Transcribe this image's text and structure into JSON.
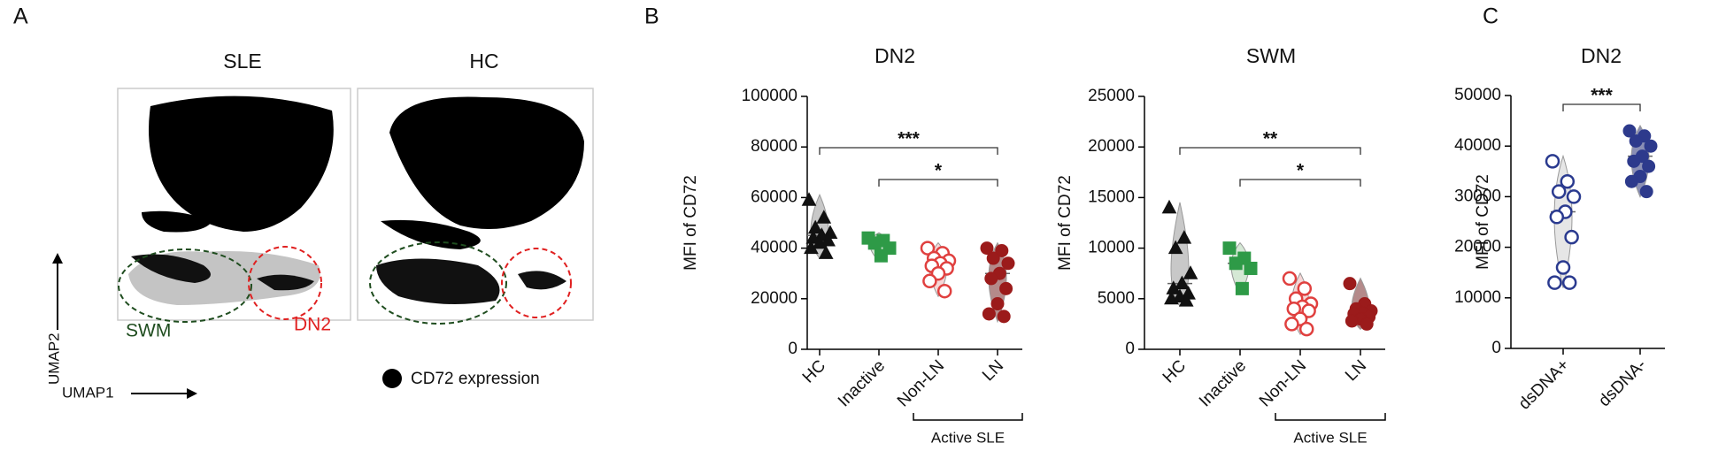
{
  "panels": [
    "A",
    "B",
    "C"
  ],
  "panel_a": {
    "titles": [
      "SLE",
      "HC"
    ],
    "regions": [
      "SWM",
      "DN2"
    ],
    "x_axis_label": "UMAP1",
    "y_axis_label": "UMAP2",
    "legend": "CD72 expression"
  },
  "chart_data": [
    {
      "type": "dotplot",
      "title": "DN2",
      "y_label": "MFI of CD72",
      "categories": [
        "HC",
        "Inactive",
        "Non-LN",
        "LN"
      ],
      "values": [
        [
          59000,
          52000,
          48000,
          46000,
          45000,
          44000,
          43000,
          42000,
          40000,
          38000
        ],
        [
          44000,
          43000,
          42000,
          40000,
          37000
        ],
        [
          40000,
          38000,
          36000,
          35000,
          34000,
          33000,
          32000,
          30000,
          27000,
          23000
        ],
        [
          40000,
          39000,
          36000,
          34000,
          30000,
          28000,
          24000,
          18000,
          14000,
          13000
        ]
      ],
      "colors": [
        "#111111",
        "#2e9a47",
        "#e0403f",
        "#9b1b1b"
      ],
      "violin_colors": [
        "#c8c8c8",
        "#d5e8d5",
        "#f6d6d6",
        "#b48a8a"
      ],
      "markers": [
        "triangle",
        "square",
        "circle",
        "circle"
      ],
      "filled": [
        true,
        true,
        false,
        true
      ],
      "ylim": [
        0,
        100000
      ],
      "yticks": [
        0,
        20000,
        40000,
        60000,
        80000,
        100000
      ],
      "brackets": [
        {
          "label": "***",
          "between": [
            "HC",
            "LN"
          ]
        },
        {
          "label": "*",
          "between": [
            "Inactive",
            "LN"
          ]
        }
      ],
      "group_brackets": [
        {
          "label": "Active SLE",
          "between": [
            "Non-LN",
            "LN"
          ]
        }
      ]
    },
    {
      "type": "dotplot",
      "title": "SWM",
      "y_label": "MFI of CD72",
      "categories": [
        "HC",
        "Inactive",
        "Non-LN",
        "LN"
      ],
      "values": [
        [
          14000,
          11000,
          10000,
          7500,
          6500,
          6000,
          5500,
          5200,
          5000,
          4800
        ],
        [
          10000,
          9000,
          8500,
          8000,
          6000
        ],
        [
          7000,
          6000,
          5000,
          4500,
          4200,
          4000,
          3800,
          3000,
          2500,
          2000
        ],
        [
          6500,
          4500,
          4000,
          3800,
          3600,
          3500,
          3200,
          3000,
          2800,
          2500
        ]
      ],
      "colors": [
        "#111111",
        "#2e9a47",
        "#e0403f",
        "#9b1b1b"
      ],
      "violin_colors": [
        "#c8c8c8",
        "#d5e8d5",
        "#f6d6d6",
        "#b48a8a"
      ],
      "markers": [
        "triangle",
        "square",
        "circle",
        "circle"
      ],
      "filled": [
        true,
        true,
        false,
        true
      ],
      "ylim": [
        0,
        25000
      ],
      "yticks": [
        0,
        5000,
        10000,
        15000,
        20000,
        25000
      ],
      "brackets": [
        {
          "label": "**",
          "between": [
            "HC",
            "LN"
          ]
        },
        {
          "label": "*",
          "between": [
            "Inactive",
            "LN"
          ]
        }
      ],
      "group_brackets": [
        {
          "label": "Active SLE",
          "between": [
            "Non-LN",
            "LN"
          ]
        }
      ]
    },
    {
      "type": "dotplot",
      "title": "DN2",
      "y_label": "MFI of CD72",
      "categories": [
        "dsDNA+",
        "dsDNA-"
      ],
      "values": [
        [
          37000,
          33000,
          31000,
          30000,
          27000,
          26000,
          22000,
          16000,
          13000,
          13000
        ],
        [
          43000,
          42000,
          41000,
          40000,
          38000,
          37000,
          36000,
          34000,
          33000,
          31000
        ]
      ],
      "colors": [
        "#2a3a8f",
        "#2d3a8c"
      ],
      "violin_colors": [
        "#e6e6e6",
        "#8a8fb5"
      ],
      "markers": [
        "circle",
        "circle"
      ],
      "filled": [
        false,
        true
      ],
      "ylim": [
        0,
        50000
      ],
      "yticks": [
        0,
        10000,
        20000,
        30000,
        40000,
        50000
      ],
      "brackets": [
        {
          "label": "***",
          "between": [
            "dsDNA+",
            "dsDNA-"
          ]
        }
      ],
      "group_brackets": []
    }
  ]
}
